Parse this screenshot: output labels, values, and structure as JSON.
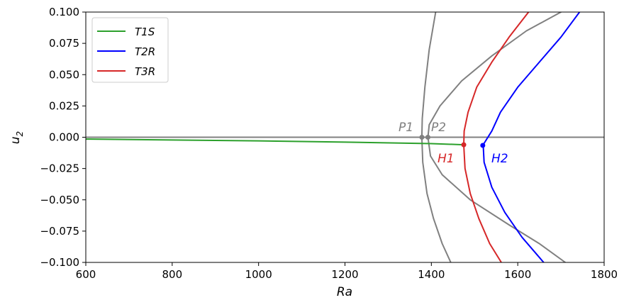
{
  "chart_data": {
    "type": "line",
    "xlabel": "Ra",
    "ylabel_base": "u",
    "ylabel_sub": "2",
    "xlim": [
      600,
      1800
    ],
    "ylim": [
      -0.1,
      0.1
    ],
    "xticks": [
      600,
      800,
      1000,
      1200,
      1400,
      1600,
      1800
    ],
    "xtick_labels": [
      "600",
      "800",
      "1000",
      "1200",
      "1400",
      "1600",
      "1800"
    ],
    "yticks": [
      -0.1,
      -0.075,
      -0.05,
      -0.025,
      0.0,
      0.025,
      0.05,
      0.075,
      0.1
    ],
    "ytick_labels": [
      "−0.100",
      "−0.075",
      "−0.050",
      "−0.025",
      "0.000",
      "0.025",
      "0.050",
      "0.075",
      "0.100"
    ],
    "grid": false,
    "legend_position": "top-left",
    "series": [
      {
        "name": "T1S",
        "color": "#2ca02c",
        "points": [
          [
            600,
            -0.0015
          ],
          [
            800,
            -0.0022
          ],
          [
            1000,
            -0.0029
          ],
          [
            1200,
            -0.0039
          ],
          [
            1400,
            -0.0051
          ],
          [
            1475,
            -0.006
          ]
        ]
      },
      {
        "name": "T2R",
        "color": "#0000ff",
        "points": [
          [
            1743,
            0.1
          ],
          [
            1700,
            0.08
          ],
          [
            1650,
            0.06
          ],
          [
            1600,
            0.04
          ],
          [
            1560,
            0.02
          ],
          [
            1540,
            0.005
          ],
          [
            1520,
            -0.006
          ],
          [
            1522,
            -0.02
          ],
          [
            1540,
            -0.04
          ],
          [
            1570,
            -0.06
          ],
          [
            1610,
            -0.08
          ],
          [
            1660,
            -0.1
          ]
        ]
      },
      {
        "name": "T3R",
        "color": "#d62728",
        "points": [
          [
            1625,
            0.1
          ],
          [
            1580,
            0.08
          ],
          [
            1540,
            0.06
          ],
          [
            1505,
            0.04
          ],
          [
            1485,
            0.02
          ],
          [
            1476,
            0.005
          ],
          [
            1475,
            -0.006
          ],
          [
            1478,
            -0.025
          ],
          [
            1490,
            -0.045
          ],
          [
            1510,
            -0.065
          ],
          [
            1535,
            -0.085
          ],
          [
            1562,
            -0.1
          ]
        ]
      },
      {
        "name": "",
        "color": "#808080",
        "points": [
          [
            1410,
            0.1
          ],
          [
            1395,
            0.07
          ],
          [
            1385,
            0.04
          ],
          [
            1379,
            0.015
          ],
          [
            1378,
            0
          ],
          [
            1380,
            -0.02
          ],
          [
            1390,
            -0.045
          ],
          [
            1405,
            -0.065
          ],
          [
            1425,
            -0.085
          ],
          [
            1445,
            -0.1
          ]
        ]
      },
      {
        "name": "",
        "color": "#808080",
        "points": [
          [
            1700,
            0.1
          ],
          [
            1620,
            0.085
          ],
          [
            1540,
            0.065
          ],
          [
            1470,
            0.045
          ],
          [
            1420,
            0.025
          ],
          [
            1395,
            0.01
          ],
          [
            1392,
            0
          ],
          [
            1398,
            -0.015
          ],
          [
            1425,
            -0.03
          ],
          [
            1490,
            -0.05
          ],
          [
            1580,
            -0.07
          ],
          [
            1650,
            -0.085
          ],
          [
            1710,
            -0.1
          ]
        ]
      },
      {
        "name": "",
        "color": "#808080",
        "points": [
          [
            600,
            0
          ],
          [
            1800,
            0
          ]
        ]
      }
    ],
    "markers": [
      {
        "label": "P1",
        "x": 1378,
        "y": 0,
        "color": "#808080"
      },
      {
        "label": "P2",
        "x": 1392,
        "y": 0,
        "color": "#808080"
      },
      {
        "label": "H1",
        "x": 1475,
        "y": -0.006,
        "color": "#d62728"
      },
      {
        "label": "H2",
        "x": 1519,
        "y": -0.0065,
        "color": "#0000ff"
      }
    ]
  }
}
